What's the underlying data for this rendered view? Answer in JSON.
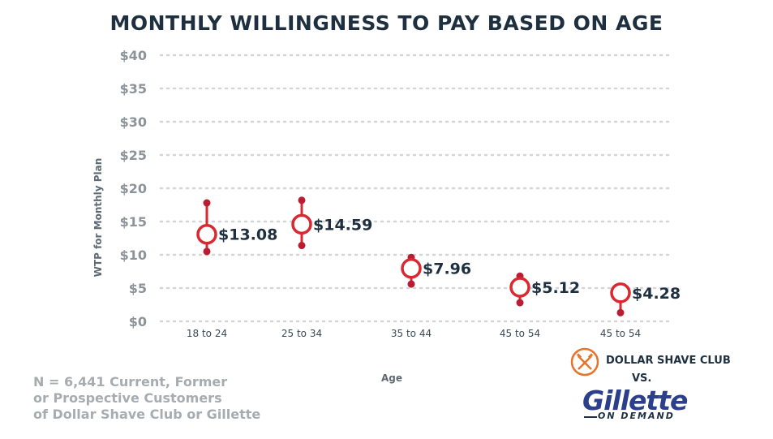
{
  "chart_data": {
    "type": "scatter",
    "title": "MONTHLY WILLINGNESS TO PAY BASED ON AGE",
    "xlabel": "Age",
    "ylabel": "WTP for Monthly Plan",
    "ylim": [
      0,
      40
    ],
    "yticks": [
      0,
      5,
      10,
      15,
      20,
      25,
      30,
      35,
      40
    ],
    "ytick_labels": [
      "$0",
      "$5",
      "$10",
      "$15",
      "$20",
      "$25",
      "$30",
      "$35",
      "$40"
    ],
    "categories": [
      "18 to 24",
      "25 to 34",
      "35 to 44",
      "45 to 54",
      "45 to 54"
    ],
    "values": [
      13.08,
      14.59,
      7.96,
      5.12,
      4.28
    ],
    "value_labels": [
      "$13.08",
      "$14.59",
      "$7.96",
      "$5.12",
      "$4.28"
    ],
    "upper": [
      17.8,
      18.2,
      9.6,
      6.8,
      5.0
    ],
    "lower": [
      10.5,
      11.4,
      5.6,
      2.8,
      1.3
    ],
    "grid": true,
    "colors": {
      "marker": "#d9282f",
      "range_dot": "#b81d33",
      "text": "#1e3040",
      "grid": "#d3d6d9"
    }
  },
  "footnote": {
    "line1": "N = 6,441 Current, Former",
    "line2": "or Prospective Customers",
    "line3": "of Dollar Shave Club or Gillette"
  },
  "logos": {
    "dsc": "DOLLAR SHAVE CLUB",
    "vs": "VS.",
    "gillette": "Gillette",
    "on_demand": "ON DEMAND"
  }
}
